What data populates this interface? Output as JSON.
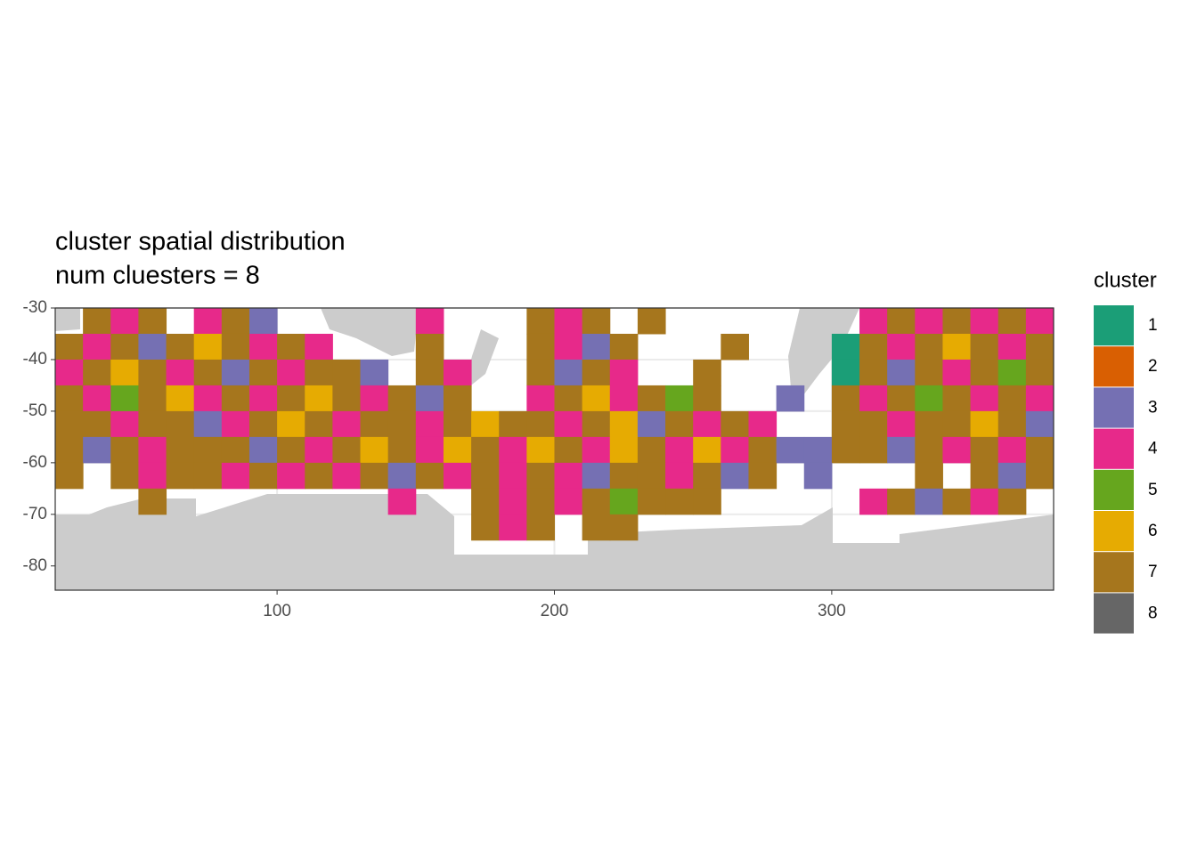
{
  "chart_data": {
    "type": "raster",
    "title": "cluster spatial distribution",
    "subtitle": "num cluesters = 8",
    "legend_title": "cluster",
    "clusters": [
      {
        "name": "1",
        "color": "#1B9E77"
      },
      {
        "name": "2",
        "color": "#D95F02"
      },
      {
        "name": "3",
        "color": "#7570B3"
      },
      {
        "name": "4",
        "color": "#E7298A"
      },
      {
        "name": "5",
        "color": "#66A61E"
      },
      {
        "name": "6",
        "color": "#E6AB02"
      },
      {
        "name": "7",
        "color": "#A6761D"
      },
      {
        "name": "8",
        "color": "#666666"
      }
    ],
    "xlim": [
      20,
      380
    ],
    "ylim": [
      -84.7,
      -30
    ],
    "xticks": [
      100,
      200,
      300
    ],
    "yticks": [
      -30,
      -40,
      -50,
      -60,
      -70,
      -80
    ],
    "grid": true,
    "x": [
      25,
      35,
      45,
      55,
      65,
      75,
      85,
      95,
      105,
      115,
      125,
      135,
      145,
      155,
      165,
      175,
      185,
      195,
      205,
      215,
      225,
      235,
      245,
      255,
      265,
      275,
      285,
      295,
      305,
      315,
      325,
      335,
      345,
      355,
      365,
      375
    ],
    "y": [
      -32.5,
      -37.5,
      -42.5,
      -47.5,
      -52.5,
      -57.5,
      -62.5,
      -67.5,
      -72.5
    ],
    "values": [
      [
        null,
        7,
        4,
        7,
        null,
        4,
        7,
        3,
        null,
        null,
        null,
        null,
        null,
        4,
        null,
        null,
        null,
        7,
        4,
        7,
        null,
        7,
        null,
        null,
        null,
        null,
        null,
        null,
        null,
        4,
        7,
        4,
        7,
        4,
        7,
        4
      ],
      [
        7,
        4,
        7,
        3,
        7,
        6,
        7,
        4,
        7,
        4,
        null,
        null,
        null,
        7,
        null,
        null,
        null,
        7,
        4,
        3,
        7,
        null,
        null,
        null,
        7,
        null,
        null,
        null,
        1,
        7,
        4,
        7,
        6,
        7,
        4,
        7
      ],
      [
        4,
        7,
        6,
        7,
        4,
        7,
        3,
        7,
        4,
        7,
        7,
        3,
        null,
        7,
        4,
        null,
        null,
        7,
        3,
        7,
        4,
        null,
        null,
        7,
        null,
        null,
        null,
        null,
        1,
        7,
        3,
        7,
        4,
        7,
        5,
        7
      ],
      [
        7,
        4,
        5,
        7,
        6,
        4,
        7,
        4,
        7,
        6,
        7,
        4,
        7,
        3,
        7,
        null,
        null,
        4,
        7,
        6,
        4,
        7,
        5,
        7,
        null,
        null,
        3,
        null,
        7,
        4,
        7,
        5,
        7,
        4,
        7,
        4
      ],
      [
        7,
        7,
        4,
        7,
        7,
        3,
        4,
        7,
        6,
        7,
        4,
        7,
        7,
        4,
        7,
        6,
        7,
        7,
        4,
        7,
        6,
        3,
        7,
        4,
        7,
        4,
        null,
        null,
        7,
        7,
        4,
        7,
        7,
        6,
        7,
        3
      ],
      [
        7,
        3,
        7,
        4,
        7,
        7,
        7,
        3,
        7,
        4,
        7,
        6,
        7,
        4,
        6,
        7,
        4,
        6,
        7,
        4,
        6,
        7,
        4,
        6,
        4,
        7,
        3,
        3,
        7,
        7,
        3,
        7,
        4,
        7,
        4,
        7
      ],
      [
        7,
        null,
        7,
        4,
        7,
        7,
        4,
        7,
        4,
        7,
        4,
        7,
        3,
        7,
        4,
        7,
        4,
        7,
        4,
        3,
        7,
        7,
        4,
        7,
        3,
        7,
        null,
        3,
        null,
        null,
        null,
        7,
        null,
        7,
        3,
        7
      ],
      [
        null,
        null,
        null,
        7,
        null,
        null,
        null,
        null,
        null,
        null,
        null,
        null,
        4,
        null,
        null,
        7,
        4,
        7,
        4,
        7,
        5,
        7,
        7,
        7,
        null,
        null,
        null,
        null,
        null,
        4,
        7,
        3,
        7,
        4,
        7,
        null
      ],
      [
        null,
        null,
        null,
        null,
        null,
        null,
        null,
        null,
        null,
        null,
        null,
        null,
        null,
        null,
        null,
        7,
        4,
        7,
        null,
        7,
        7,
        null,
        null,
        null,
        null,
        null,
        null,
        null,
        null,
        null,
        null,
        null,
        null,
        null,
        null,
        null
      ]
    ]
  }
}
